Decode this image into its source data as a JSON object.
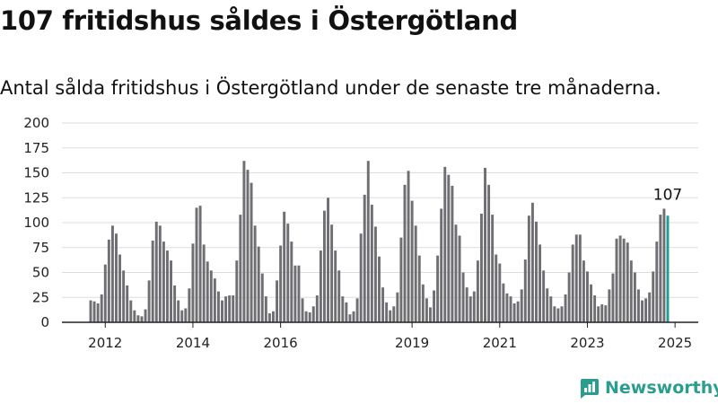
{
  "title": "107 fritidshus såldes i Östergötland",
  "subtitle": "Antal sålda fritidshus i Östergötland under de senaste tre månaderna.",
  "brand": {
    "name": "Newsworthy",
    "logo_icon": "newsworthy-chart-icon"
  },
  "colors": {
    "bar": "#6f6f73",
    "highlight": "#1f9e93",
    "grid": "#dddddd",
    "axis": "#222222",
    "brand": "#2a9d8f"
  },
  "chart_data": {
    "type": "bar",
    "title": "107 fritidshus såldes i Östergötland",
    "subtitle": "Antal sålda fritidshus i Östergötland under de senaste tre månaderna.",
    "xlabel": "",
    "ylabel": "",
    "ylim": [
      0,
      200
    ],
    "yticks": [
      0,
      25,
      50,
      75,
      100,
      125,
      150,
      175,
      200
    ],
    "xticks": [
      {
        "label": "2012",
        "index": 4
      },
      {
        "label": "2014",
        "index": 28
      },
      {
        "label": "2016",
        "index": 52
      },
      {
        "label": "2019",
        "index": 88
      },
      {
        "label": "2021",
        "index": 112
      },
      {
        "label": "2023",
        "index": 136
      },
      {
        "label": "2025",
        "index": 160
      }
    ],
    "grid": true,
    "highlight_last": true,
    "last_value_label": "107",
    "values": [
      22,
      21,
      19,
      28,
      58,
      83,
      97,
      89,
      68,
      52,
      37,
      22,
      12,
      7,
      6,
      13,
      42,
      82,
      101,
      97,
      81,
      72,
      62,
      37,
      22,
      12,
      14,
      34,
      79,
      115,
      117,
      78,
      61,
      52,
      44,
      31,
      22,
      26,
      27,
      27,
      62,
      108,
      162,
      153,
      140,
      97,
      76,
      49,
      26,
      9,
      11,
      42,
      77,
      111,
      99,
      81,
      57,
      57,
      24,
      11,
      10,
      16,
      27,
      72,
      112,
      125,
      98,
      72,
      52,
      26,
      20,
      8,
      11,
      24,
      89,
      128,
      162,
      118,
      96,
      66,
      35,
      20,
      12,
      16,
      30,
      85,
      138,
      152,
      122,
      97,
      67,
      38,
      24,
      15,
      32,
      67,
      114,
      156,
      148,
      137,
      98,
      87,
      50,
      35,
      26,
      31,
      62,
      109,
      155,
      138,
      108,
      68,
      59,
      39,
      29,
      26,
      19,
      21,
      33,
      63,
      107,
      120,
      101,
      78,
      52,
      34,
      26,
      16,
      14,
      16,
      28,
      50,
      78,
      88,
      88,
      62,
      51,
      38,
      27,
      16,
      18,
      17,
      33,
      49,
      84,
      87,
      84,
      80,
      62,
      50,
      33,
      22,
      24,
      30,
      51,
      81,
      108,
      114,
      107
    ]
  }
}
